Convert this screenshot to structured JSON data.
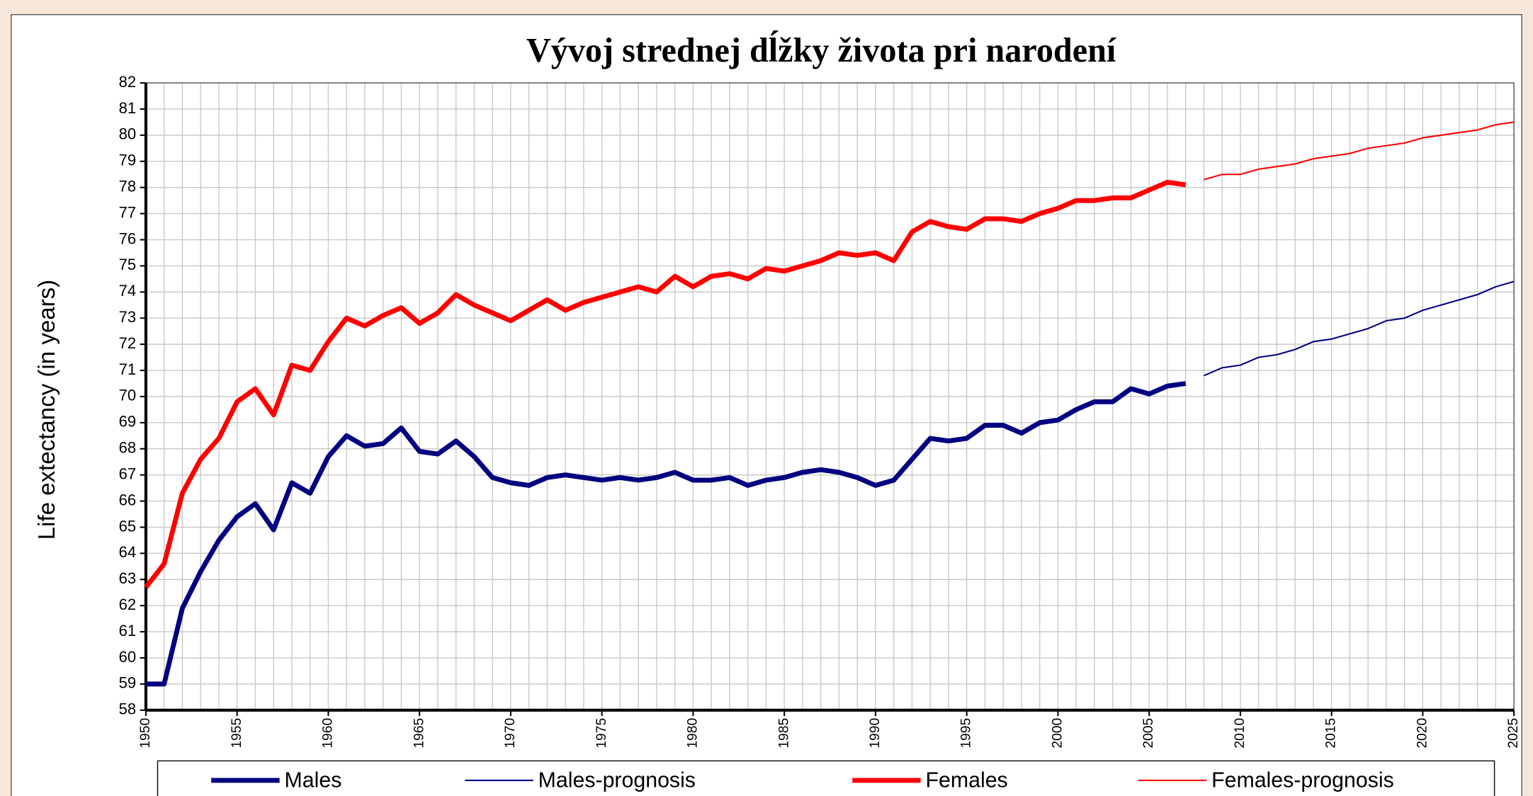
{
  "chart_data": {
    "type": "line",
    "title": "Vývoj strednej dĺžky života pri narodení",
    "y_label": "Life extectancy (in years)",
    "x": [
      1950,
      1951,
      1952,
      1953,
      1954,
      1955,
      1956,
      1957,
      1958,
      1959,
      1960,
      1961,
      1962,
      1963,
      1964,
      1965,
      1966,
      1967,
      1968,
      1969,
      1970,
      1971,
      1972,
      1973,
      1974,
      1975,
      1976,
      1977,
      1978,
      1979,
      1980,
      1981,
      1982,
      1983,
      1984,
      1985,
      1986,
      1987,
      1988,
      1989,
      1990,
      1991,
      1992,
      1993,
      1994,
      1995,
      1996,
      1997,
      1998,
      1999,
      2000,
      2001,
      2002,
      2003,
      2004,
      2005,
      2006,
      2007,
      2008,
      2009,
      2010,
      2011,
      2012,
      2013,
      2014,
      2015,
      2016,
      2017,
      2018,
      2019,
      2020,
      2021,
      2022,
      2023,
      2024,
      2025
    ],
    "series": [
      {
        "name": "Males",
        "color": "#000080",
        "linewidth": 5,
        "values": [
          59.0,
          59.0,
          61.9,
          63.3,
          64.5,
          65.4,
          65.9,
          64.9,
          66.7,
          66.3,
          67.7,
          68.5,
          68.1,
          68.2,
          68.8,
          67.9,
          67.8,
          68.3,
          67.7,
          66.9,
          66.7,
          66.6,
          66.9,
          67.0,
          66.9,
          66.8,
          66.9,
          66.8,
          66.9,
          67.1,
          66.8,
          66.8,
          66.9,
          66.6,
          66.8,
          66.9,
          67.1,
          67.2,
          67.1,
          66.9,
          66.6,
          66.8,
          67.6,
          68.4,
          68.3,
          68.4,
          68.9,
          68.9,
          68.6,
          69.0,
          69.1,
          69.5,
          69.8,
          69.8,
          70.3,
          70.1,
          70.4,
          70.5,
          null,
          null,
          null,
          null,
          null,
          null,
          null,
          null,
          null,
          null,
          null,
          null,
          null,
          null,
          null,
          null,
          null,
          null
        ]
      },
      {
        "name": "Males-prognosis",
        "color": "#000080",
        "linewidth": 1.5,
        "values": [
          null,
          null,
          null,
          null,
          null,
          null,
          null,
          null,
          null,
          null,
          null,
          null,
          null,
          null,
          null,
          null,
          null,
          null,
          null,
          null,
          null,
          null,
          null,
          null,
          null,
          null,
          null,
          null,
          null,
          null,
          null,
          null,
          null,
          null,
          null,
          null,
          null,
          null,
          null,
          null,
          null,
          null,
          null,
          null,
          null,
          null,
          null,
          null,
          null,
          null,
          null,
          null,
          null,
          null,
          null,
          null,
          null,
          null,
          70.8,
          71.1,
          71.2,
          71.5,
          71.6,
          71.8,
          72.1,
          72.2,
          72.4,
          72.6,
          72.9,
          73.0,
          73.3,
          73.5,
          73.7,
          73.9,
          74.2,
          74.4
        ]
      },
      {
        "name": "Females",
        "color": "#ff0000",
        "linewidth": 5,
        "values": [
          62.7,
          63.6,
          66.3,
          67.6,
          68.4,
          69.8,
          70.3,
          69.3,
          71.2,
          71.0,
          72.1,
          73.0,
          72.7,
          73.1,
          73.4,
          72.8,
          73.2,
          73.9,
          73.5,
          73.2,
          72.9,
          73.3,
          73.7,
          73.3,
          73.6,
          73.8,
          74.0,
          74.2,
          74.0,
          74.6,
          74.2,
          74.6,
          74.7,
          74.5,
          74.9,
          74.8,
          75.0,
          75.2,
          75.5,
          75.4,
          75.5,
          75.2,
          76.3,
          76.7,
          76.5,
          76.4,
          76.8,
          76.8,
          76.7,
          77.0,
          77.2,
          77.5,
          77.5,
          77.6,
          77.6,
          77.9,
          78.2,
          78.1,
          null,
          null,
          null,
          null,
          null,
          null,
          null,
          null,
          null,
          null,
          null,
          null,
          null,
          null,
          null,
          null,
          null,
          null
        ]
      },
      {
        "name": "Females-prognosis",
        "color": "#ff0000",
        "linewidth": 1.5,
        "values": [
          null,
          null,
          null,
          null,
          null,
          null,
          null,
          null,
          null,
          null,
          null,
          null,
          null,
          null,
          null,
          null,
          null,
          null,
          null,
          null,
          null,
          null,
          null,
          null,
          null,
          null,
          null,
          null,
          null,
          null,
          null,
          null,
          null,
          null,
          null,
          null,
          null,
          null,
          null,
          null,
          null,
          null,
          null,
          null,
          null,
          null,
          null,
          null,
          null,
          null,
          null,
          null,
          null,
          null,
          null,
          null,
          null,
          null,
          78.3,
          78.5,
          78.5,
          78.7,
          78.8,
          78.9,
          79.1,
          79.2,
          79.3,
          79.5,
          79.6,
          79.7,
          79.9,
          80.0,
          80.1,
          80.2,
          80.4,
          80.5
        ]
      }
    ],
    "xlim": [
      1950,
      2025
    ],
    "xticks": [
      1950,
      1955,
      1960,
      1965,
      1970,
      1975,
      1980,
      1985,
      1990,
      1995,
      2000,
      2005,
      2010,
      2015,
      2020,
      2025
    ],
    "ylim": [
      58,
      82
    ],
    "yticks": [
      58,
      59,
      60,
      61,
      62,
      63,
      64,
      65,
      66,
      67,
      68,
      69,
      70,
      71,
      72,
      73,
      74,
      75,
      76,
      77,
      78,
      79,
      80,
      81,
      82
    ],
    "grid": true,
    "legend": "bottom"
  }
}
